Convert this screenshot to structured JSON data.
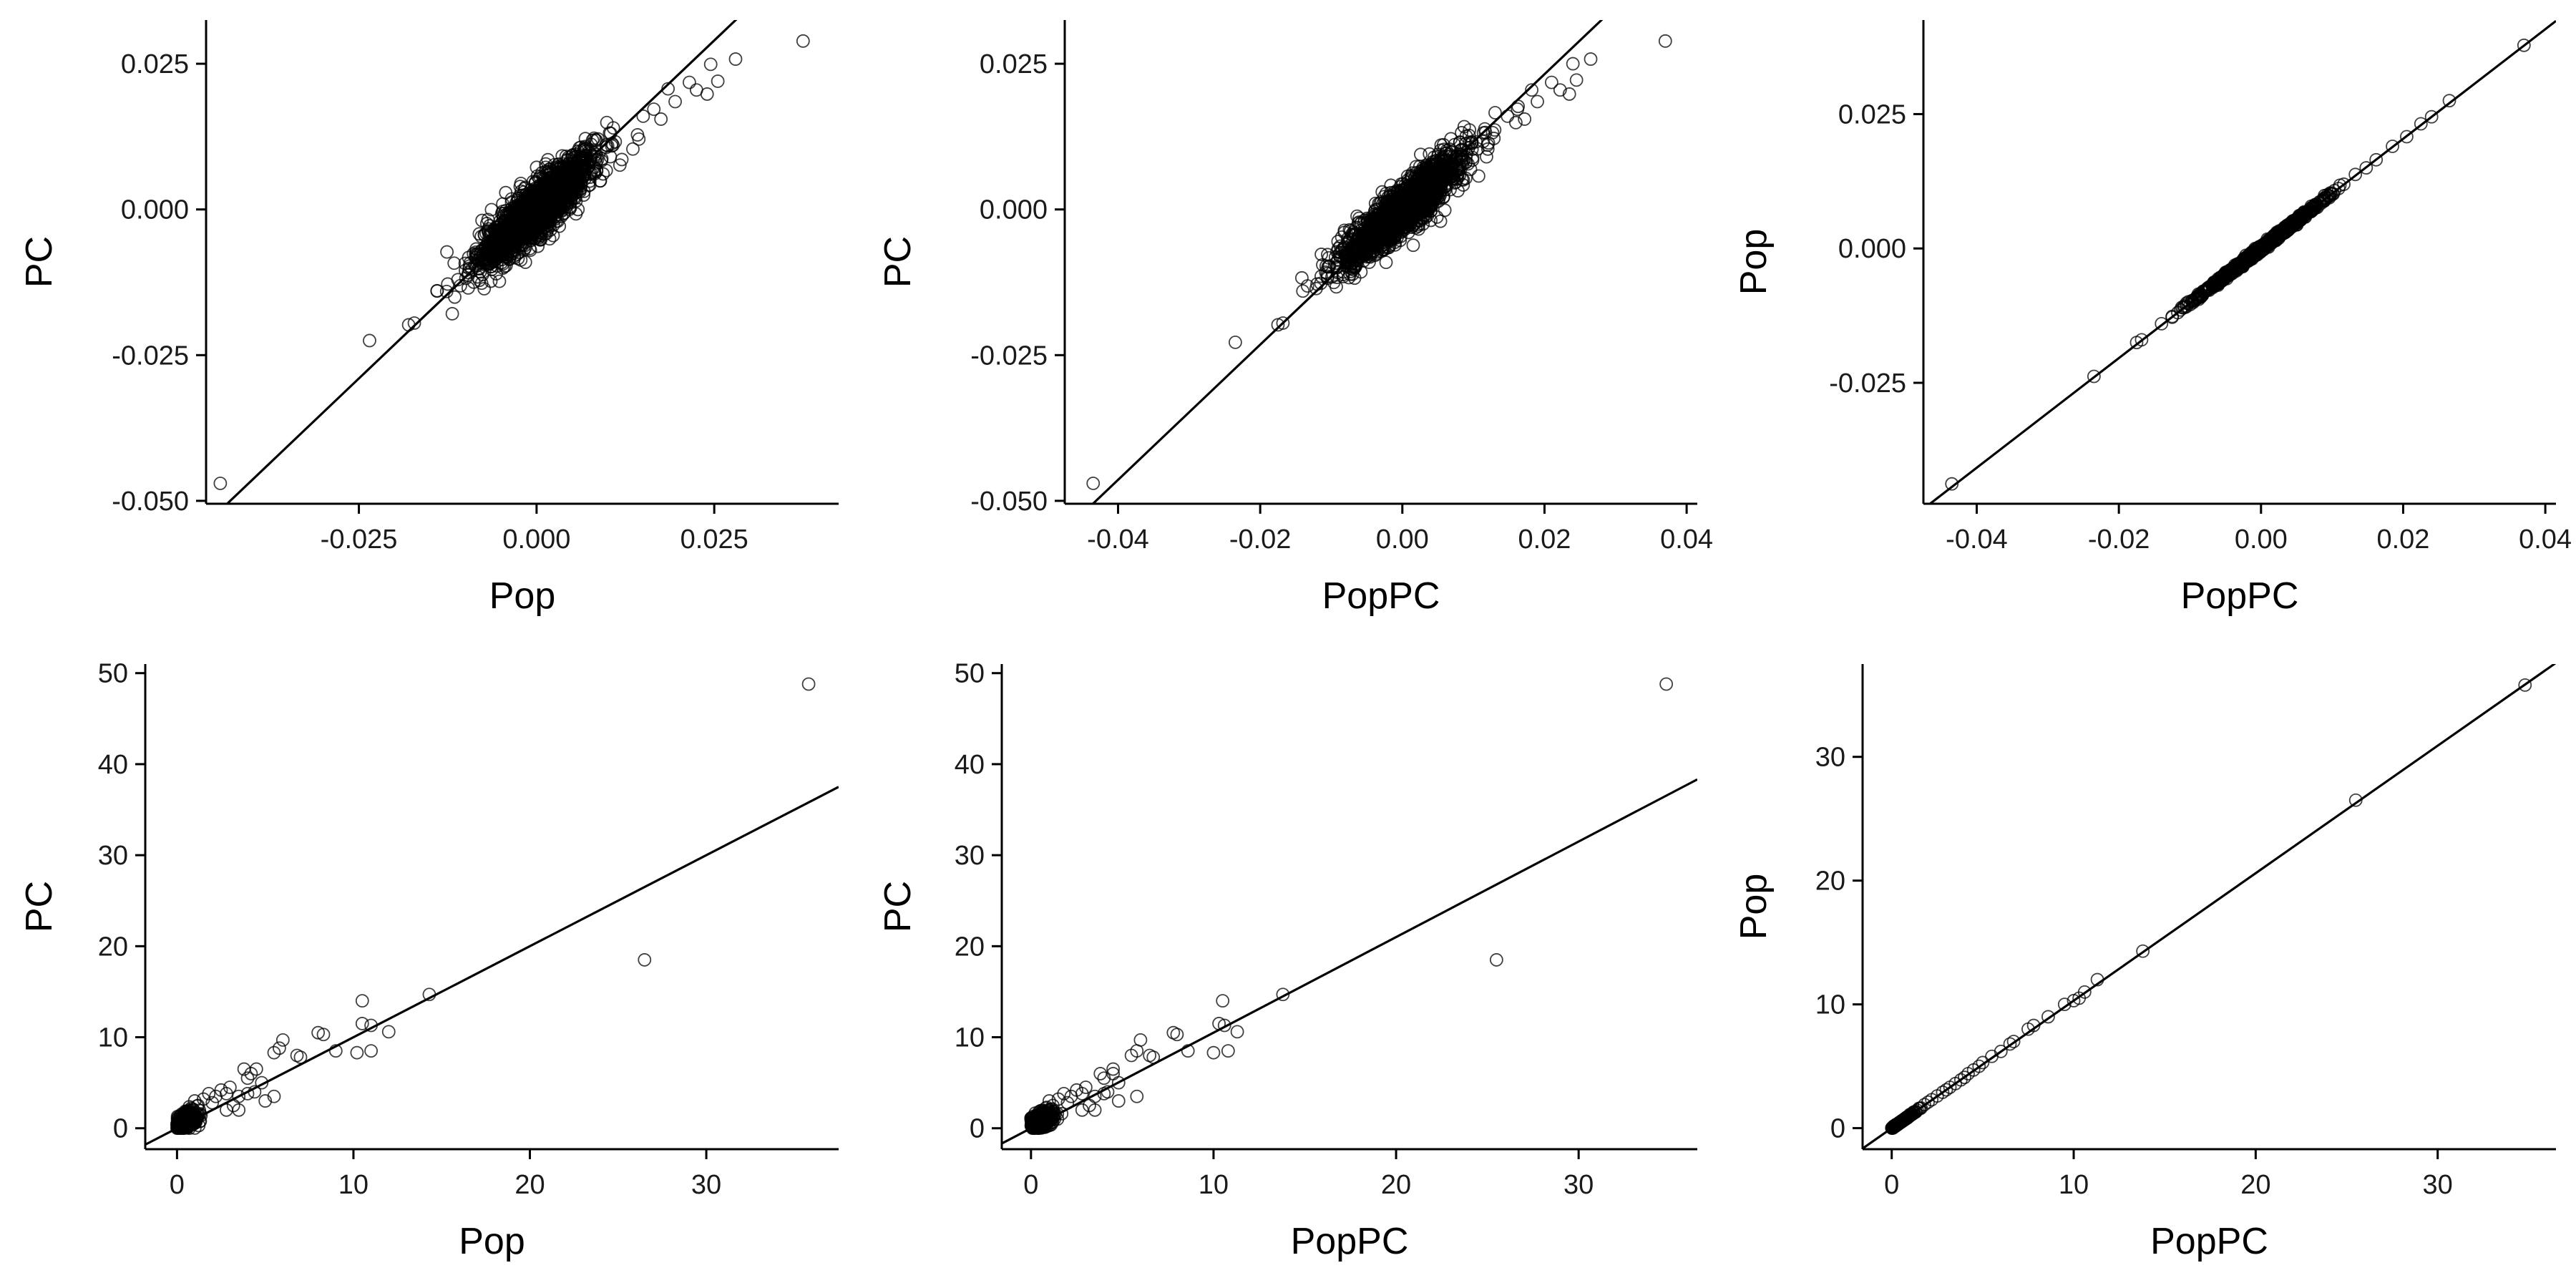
{
  "chart_data": [
    {
      "type": "scatter",
      "xlabel": "Pop",
      "ylabel": "PC",
      "xlim": [
        -0.0465,
        0.0425
      ],
      "ylim": [
        -0.0505,
        0.0325
      ],
      "xticks": [
        -0.025,
        0.0,
        0.025
      ],
      "xtick_labels": [
        "-0.025",
        "0.000",
        "0.025"
      ],
      "yticks": [
        -0.05,
        -0.025,
        0.0,
        0.025
      ],
      "ytick_labels": [
        "-0.050",
        "-0.025",
        "0.000",
        "0.025"
      ],
      "trend_line": {
        "slope": 1.16,
        "intercept": 0.0
      },
      "cluster": {
        "center": [
          0.0,
          0.0
        ],
        "x_sd": 0.004,
        "y_sd": 0.0048,
        "corr": 0.88,
        "count": 1800
      },
      "points": [
        [
          -0.0445,
          -0.047
        ],
        [
          -0.0235,
          -0.0225
        ],
        [
          -0.018,
          -0.0198
        ],
        [
          -0.0172,
          -0.0195
        ],
        [
          -0.014,
          -0.014
        ],
        [
          -0.0125,
          -0.0128
        ],
        [
          0.0375,
          0.0289
        ],
        [
          0.028,
          0.0258
        ],
        [
          0.0245,
          0.0249
        ],
        [
          0.0225,
          0.0205
        ],
        [
          0.024,
          0.0198
        ],
        [
          0.0255,
          0.022
        ],
        [
          0.0215,
          0.0218
        ],
        [
          0.0185,
          0.0207
        ],
        [
          0.0195,
          0.0185
        ],
        [
          0.0165,
          0.0172
        ],
        [
          0.0175,
          0.0155
        ],
        [
          0.015,
          0.016
        ],
        [
          0.0142,
          0.0128
        ]
      ]
    },
    {
      "type": "scatter",
      "xlabel": "PopPC",
      "ylabel": "PC",
      "xlim": [
        -0.0475,
        0.0415
      ],
      "ylim": [
        -0.0505,
        0.0325
      ],
      "xticks": [
        -0.04,
        -0.02,
        0.0,
        0.02,
        0.04
      ],
      "xtick_labels": [
        "-0.04",
        "-0.02",
        "0.00",
        "0.02",
        "0.04"
      ],
      "yticks": [
        -0.05,
        -0.025,
        0.0,
        0.025
      ],
      "ytick_labels": [
        "-0.050",
        "-0.025",
        "0.000",
        "0.025"
      ],
      "trend_line": {
        "slope": 1.16,
        "intercept": 0.0
      },
      "cluster": {
        "center": [
          0.0,
          0.0
        ],
        "x_sd": 0.0043,
        "y_sd": 0.0048,
        "corr": 0.9,
        "count": 1800
      },
      "points": [
        [
          -0.0435,
          -0.047
        ],
        [
          -0.0235,
          -0.0228
        ],
        [
          -0.0175,
          -0.0198
        ],
        [
          -0.0168,
          -0.0195
        ],
        [
          -0.014,
          -0.014
        ],
        [
          -0.012,
          -0.0128
        ],
        [
          0.037,
          0.0289
        ],
        [
          0.0265,
          0.0258
        ],
        [
          0.024,
          0.025
        ],
        [
          0.0222,
          0.0205
        ],
        [
          0.0235,
          0.0198
        ],
        [
          0.0245,
          0.0222
        ],
        [
          0.021,
          0.0218
        ],
        [
          0.0182,
          0.0205
        ],
        [
          0.019,
          0.0185
        ],
        [
          0.0162,
          0.0172
        ],
        [
          0.0172,
          0.0155
        ],
        [
          0.0148,
          0.016
        ]
      ]
    },
    {
      "type": "scatter",
      "xlabel": "PopPC",
      "ylabel": "Pop",
      "xlim": [
        -0.0475,
        0.0415
      ],
      "ylim": [
        -0.0475,
        0.0425
      ],
      "xticks": [
        -0.04,
        -0.02,
        0.0,
        0.02,
        0.04
      ],
      "xtick_labels": [
        "-0.04",
        "-0.02",
        "0.00",
        "0.02",
        "0.04"
      ],
      "yticks": [
        -0.025,
        0.0,
        0.025
      ],
      "ytick_labels": [
        "-0.025",
        "0.000",
        "0.025"
      ],
      "trend_line": {
        "slope": 1.02,
        "intercept": 0.0
      },
      "cluster": {
        "center": [
          0.0,
          0.0
        ],
        "x_sd": 0.004,
        "y_sd": 0.0041,
        "corr": 0.998,
        "count": 1400
      },
      "points": [
        [
          -0.0435,
          -0.0438
        ],
        [
          -0.0235,
          -0.0238
        ],
        [
          -0.0175,
          -0.0175
        ],
        [
          -0.0168,
          -0.017
        ],
        [
          -0.014,
          -0.014
        ],
        [
          -0.0125,
          -0.0128
        ],
        [
          0.037,
          0.0378
        ],
        [
          0.0265,
          0.0275
        ],
        [
          0.024,
          0.0245
        ],
        [
          0.0225,
          0.0232
        ],
        [
          0.0205,
          0.0208
        ],
        [
          0.0185,
          0.019
        ],
        [
          0.0162,
          0.0165
        ],
        [
          0.0148,
          0.015
        ]
      ]
    },
    {
      "type": "scatter",
      "xlabel": "Pop",
      "ylabel": "PC",
      "xlim": [
        -1.8,
        37.5
      ],
      "ylim": [
        -2.3,
        51.0
      ],
      "xticks": [
        0,
        10,
        20,
        30
      ],
      "xtick_labels": [
        "0",
        "10",
        "20",
        "30"
      ],
      "yticks": [
        0,
        10,
        20,
        30,
        40,
        50
      ],
      "ytick_labels": [
        "0",
        "10",
        "20",
        "30",
        "40",
        "50"
      ],
      "trend_line": {
        "slope": 1.0,
        "intercept": 0.0
      },
      "cluster": {
        "center": [
          0.5,
          0.8
        ],
        "x_sd": 0.35,
        "y_sd": 0.6,
        "corr": 0.5,
        "count": 320
      },
      "points": [
        [
          35.8,
          48.8
        ],
        [
          26.5,
          18.5
        ],
        [
          14.3,
          14.7
        ],
        [
          10.5,
          14.0
        ],
        [
          12.0,
          10.6
        ],
        [
          11.0,
          11.3
        ],
        [
          10.5,
          11.5
        ],
        [
          10.2,
          8.3
        ],
        [
          11.0,
          8.5
        ],
        [
          9.0,
          8.5
        ],
        [
          8.0,
          10.5
        ],
        [
          8.3,
          10.3
        ],
        [
          6.0,
          9.7
        ],
        [
          5.8,
          8.8
        ],
        [
          5.5,
          8.3
        ],
        [
          6.8,
          8.0
        ],
        [
          7.0,
          7.8
        ],
        [
          5.5,
          3.5
        ],
        [
          4.5,
          6.5
        ],
        [
          4.0,
          5.5
        ],
        [
          4.2,
          6.0
        ],
        [
          3.8,
          6.5
        ],
        [
          4.8,
          5.0
        ],
        [
          5.0,
          3.0
        ],
        [
          4.0,
          3.8
        ],
        [
          3.5,
          3.5
        ],
        [
          3.0,
          4.5
        ],
        [
          3.2,
          2.5
        ],
        [
          2.8,
          3.8
        ],
        [
          2.5,
          4.2
        ],
        [
          2.2,
          3.5
        ],
        [
          2.0,
          2.8
        ],
        [
          1.8,
          3.8
        ],
        [
          1.5,
          3.2
        ],
        [
          3.5,
          2.0
        ],
        [
          2.8,
          2.0
        ],
        [
          1.2,
          2.5
        ],
        [
          1.0,
          3.0
        ],
        [
          0.8,
          2.2
        ],
        [
          4.4,
          4.0
        ]
      ]
    },
    {
      "type": "scatter",
      "xlabel": "PopPC",
      "ylabel": "PC",
      "xlim": [
        -1.6,
        36.5
      ],
      "ylim": [
        -2.3,
        51.0
      ],
      "xticks": [
        0,
        10,
        20,
        30
      ],
      "xtick_labels": [
        "0",
        "10",
        "20",
        "30"
      ],
      "yticks": [
        0,
        10,
        20,
        30,
        40,
        50
      ],
      "ytick_labels": [
        "0",
        "10",
        "20",
        "30",
        "40",
        "50"
      ],
      "trend_line": {
        "slope": 1.05,
        "intercept": 0.0
      },
      "cluster": {
        "center": [
          0.5,
          0.8
        ],
        "x_sd": 0.35,
        "y_sd": 0.6,
        "corr": 0.5,
        "count": 320
      },
      "points": [
        [
          34.8,
          48.8
        ],
        [
          25.5,
          18.5
        ],
        [
          13.8,
          14.7
        ],
        [
          10.5,
          14.0
        ],
        [
          11.3,
          10.6
        ],
        [
          10.6,
          11.3
        ],
        [
          10.3,
          11.5
        ],
        [
          10.0,
          8.3
        ],
        [
          10.8,
          8.5
        ],
        [
          8.6,
          8.5
        ],
        [
          7.8,
          10.5
        ],
        [
          8.0,
          10.3
        ],
        [
          6.0,
          9.7
        ],
        [
          5.8,
          8.5
        ],
        [
          5.5,
          8.0
        ],
        [
          6.5,
          8.0
        ],
        [
          6.7,
          7.8
        ],
        [
          5.8,
          3.5
        ],
        [
          4.5,
          6.5
        ],
        [
          4.0,
          5.5
        ],
        [
          4.5,
          6.0
        ],
        [
          3.8,
          6.0
        ],
        [
          4.8,
          5.0
        ],
        [
          4.8,
          3.0
        ],
        [
          4.0,
          3.8
        ],
        [
          3.5,
          3.5
        ],
        [
          3.0,
          4.5
        ],
        [
          3.2,
          2.5
        ],
        [
          2.8,
          3.8
        ],
        [
          2.5,
          4.2
        ],
        [
          2.2,
          3.5
        ],
        [
          2.0,
          2.8
        ],
        [
          1.8,
          3.8
        ],
        [
          1.5,
          3.2
        ],
        [
          3.5,
          2.0
        ],
        [
          2.8,
          2.0
        ],
        [
          1.2,
          2.5
        ],
        [
          1.0,
          3.0
        ],
        [
          0.8,
          2.2
        ],
        [
          4.2,
          4.0
        ]
      ]
    },
    {
      "type": "scatter",
      "xlabel": "PopPC",
      "ylabel": "Pop",
      "xlim": [
        -1.6,
        36.5
      ],
      "ylim": [
        -1.7,
        37.5
      ],
      "xticks": [
        0,
        10,
        20,
        30
      ],
      "xtick_labels": [
        "0",
        "10",
        "20",
        "30"
      ],
      "yticks": [
        0,
        10,
        20,
        30
      ],
      "ytick_labels": [
        "0",
        "10",
        "20",
        "30"
      ],
      "trend_line": {
        "slope": 1.03,
        "intercept": 0.0
      },
      "cluster": {
        "center": [
          0.5,
          0.5
        ],
        "x_sd": 0.35,
        "y_sd": 0.36,
        "corr": 0.998,
        "count": 260
      },
      "points": [
        [
          34.8,
          35.8
        ],
        [
          25.5,
          26.5
        ],
        [
          13.8,
          14.3
        ],
        [
          11.3,
          12.0
        ],
        [
          10.6,
          11.0
        ],
        [
          10.3,
          10.5
        ],
        [
          10.0,
          10.3
        ],
        [
          9.5,
          10.0
        ],
        [
          8.6,
          9.0
        ],
        [
          7.8,
          8.3
        ],
        [
          7.5,
          8.0
        ],
        [
          6.7,
          7.0
        ],
        [
          6.5,
          6.8
        ],
        [
          6.0,
          6.2
        ],
        [
          5.5,
          5.8
        ],
        [
          5.0,
          5.3
        ],
        [
          4.8,
          5.0
        ],
        [
          4.5,
          4.7
        ],
        [
          4.2,
          4.4
        ],
        [
          4.0,
          4.1
        ],
        [
          3.8,
          3.9
        ],
        [
          3.5,
          3.6
        ],
        [
          3.2,
          3.3
        ],
        [
          3.0,
          3.1
        ],
        [
          2.8,
          2.9
        ],
        [
          2.5,
          2.6
        ],
        [
          2.2,
          2.3
        ],
        [
          2.0,
          2.1
        ],
        [
          1.8,
          1.9
        ],
        [
          1.5,
          1.6
        ],
        [
          1.2,
          1.3
        ],
        [
          1.0,
          1.1
        ]
      ]
    }
  ]
}
